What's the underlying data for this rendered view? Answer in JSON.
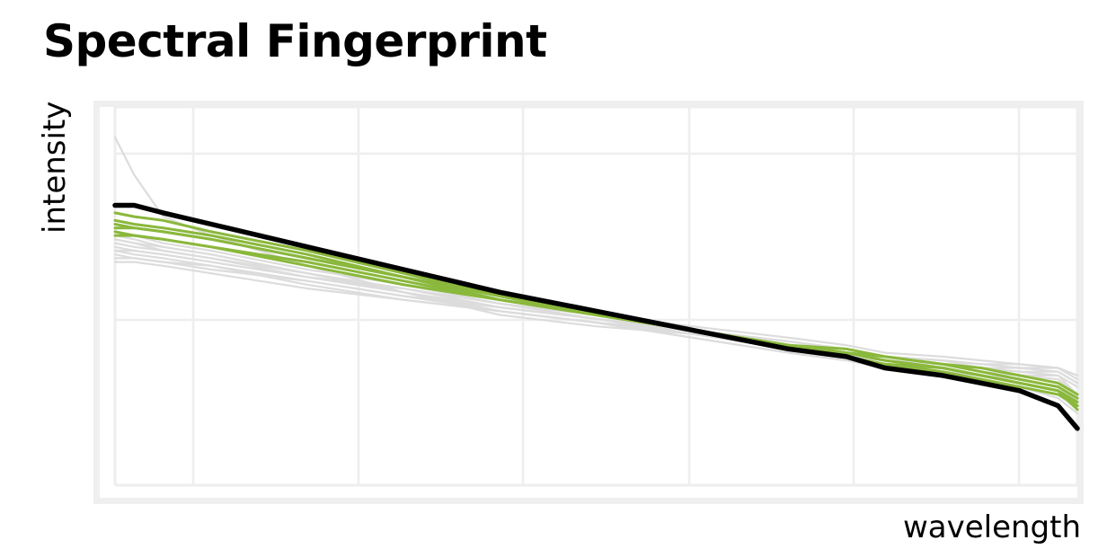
{
  "chart_data": {
    "type": "line",
    "title": "Spectral Fingerprint",
    "xlabel": "wavelength",
    "ylabel": "intensity",
    "xlim": [
      0,
      1
    ],
    "ylim": [
      0,
      1
    ],
    "grid": true,
    "legend": "none",
    "colors": {
      "background_spectra": "#dcdcdc",
      "highlight_spectra": "#8ab83c",
      "reference_spectrum": "#000000",
      "grid": "#eeeeee",
      "frame": "#efefef"
    },
    "x": [
      0,
      0.02,
      0.05,
      0.1,
      0.2,
      0.3,
      0.4,
      0.5,
      0.6,
      0.7,
      0.76,
      0.8,
      0.86,
      0.9,
      0.94,
      0.98,
      1.0
    ],
    "series": [
      {
        "group": "background",
        "values": [
          0.92,
          0.82,
          0.71,
          0.66,
          0.58,
          0.51,
          0.45,
          0.42,
          0.4,
          0.36,
          0.34,
          0.33,
          0.32,
          0.3,
          0.29,
          0.29,
          0.24
        ]
      },
      {
        "group": "background",
        "values": [
          0.65,
          0.64,
          0.63,
          0.61,
          0.56,
          0.51,
          0.46,
          0.43,
          0.39,
          0.35,
          0.33,
          0.31,
          0.3,
          0.29,
          0.28,
          0.26,
          0.22
        ]
      },
      {
        "group": "background",
        "values": [
          0.62,
          0.61,
          0.6,
          0.58,
          0.54,
          0.5,
          0.46,
          0.43,
          0.4,
          0.37,
          0.35,
          0.33,
          0.32,
          0.31,
          0.3,
          0.29,
          0.26
        ]
      },
      {
        "group": "background",
        "values": [
          0.6,
          0.6,
          0.59,
          0.57,
          0.54,
          0.5,
          0.47,
          0.44,
          0.41,
          0.38,
          0.36,
          0.34,
          0.33,
          0.32,
          0.31,
          0.3,
          0.27
        ]
      },
      {
        "group": "background",
        "values": [
          0.66,
          0.65,
          0.63,
          0.61,
          0.56,
          0.52,
          0.47,
          0.44,
          0.4,
          0.36,
          0.34,
          0.32,
          0.3,
          0.28,
          0.26,
          0.24,
          0.2
        ]
      },
      {
        "group": "background",
        "values": [
          0.63,
          0.62,
          0.61,
          0.59,
          0.55,
          0.51,
          0.47,
          0.44,
          0.41,
          0.38,
          0.36,
          0.34,
          0.33,
          0.32,
          0.32,
          0.31,
          0.28
        ]
      },
      {
        "group": "background",
        "values": [
          0.61,
          0.6,
          0.59,
          0.58,
          0.53,
          0.49,
          0.46,
          0.43,
          0.4,
          0.37,
          0.35,
          0.33,
          0.31,
          0.29,
          0.27,
          0.25,
          0.21
        ]
      },
      {
        "group": "background",
        "values": [
          0.67,
          0.66,
          0.64,
          0.62,
          0.57,
          0.53,
          0.48,
          0.44,
          0.41,
          0.37,
          0.35,
          0.33,
          0.32,
          0.31,
          0.3,
          0.3,
          0.27
        ]
      },
      {
        "group": "background",
        "values": [
          0.64,
          0.63,
          0.62,
          0.6,
          0.56,
          0.51,
          0.47,
          0.44,
          0.4,
          0.37,
          0.35,
          0.33,
          0.32,
          0.31,
          0.31,
          0.31,
          0.29
        ]
      },
      {
        "group": "background",
        "values": [
          0.59,
          0.59,
          0.58,
          0.56,
          0.52,
          0.49,
          0.46,
          0.43,
          0.41,
          0.38,
          0.36,
          0.34,
          0.33,
          0.31,
          0.29,
          0.28,
          0.24
        ]
      },
      {
        "group": "background",
        "values": [
          0.65,
          0.64,
          0.62,
          0.6,
          0.55,
          0.51,
          0.46,
          0.43,
          0.39,
          0.35,
          0.33,
          0.31,
          0.29,
          0.27,
          0.26,
          0.23,
          0.19
        ]
      },
      {
        "group": "background",
        "values": [
          0.62,
          0.62,
          0.61,
          0.59,
          0.55,
          0.52,
          0.48,
          0.45,
          0.42,
          0.39,
          0.37,
          0.35,
          0.34,
          0.33,
          0.32,
          0.31,
          0.29
        ]
      },
      {
        "group": "highlight",
        "values": [
          0.72,
          0.71,
          0.7,
          0.67,
          0.62,
          0.56,
          0.5,
          0.45,
          0.41,
          0.36,
          0.34,
          0.32,
          0.3,
          0.28,
          0.26,
          0.24,
          0.21
        ]
      },
      {
        "group": "highlight",
        "values": [
          0.7,
          0.69,
          0.68,
          0.66,
          0.61,
          0.55,
          0.5,
          0.45,
          0.41,
          0.37,
          0.35,
          0.33,
          0.31,
          0.29,
          0.27,
          0.25,
          0.22
        ]
      },
      {
        "group": "highlight",
        "values": [
          0.68,
          0.68,
          0.67,
          0.65,
          0.6,
          0.55,
          0.49,
          0.45,
          0.41,
          0.37,
          0.35,
          0.33,
          0.31,
          0.29,
          0.27,
          0.25,
          0.21
        ]
      },
      {
        "group": "highlight",
        "values": [
          0.67,
          0.66,
          0.65,
          0.63,
          0.59,
          0.54,
          0.49,
          0.45,
          0.41,
          0.37,
          0.35,
          0.34,
          0.32,
          0.3,
          0.28,
          0.26,
          0.23
        ]
      },
      {
        "group": "highlight",
        "values": [
          0.66,
          0.66,
          0.65,
          0.63,
          0.58,
          0.53,
          0.49,
          0.45,
          0.41,
          0.37,
          0.36,
          0.34,
          0.32,
          0.31,
          0.29,
          0.27,
          0.24
        ]
      },
      {
        "group": "highlight",
        "values": [
          0.69,
          0.68,
          0.67,
          0.65,
          0.6,
          0.55,
          0.5,
          0.45,
          0.41,
          0.36,
          0.34,
          0.32,
          0.31,
          0.29,
          0.27,
          0.25,
          0.2
        ]
      },
      {
        "group": "reference",
        "values": [
          0.74,
          0.74,
          0.72,
          0.69,
          0.63,
          0.57,
          0.51,
          0.46,
          0.41,
          0.36,
          0.34,
          0.31,
          0.29,
          0.27,
          0.25,
          0.21,
          0.15
        ]
      }
    ]
  }
}
